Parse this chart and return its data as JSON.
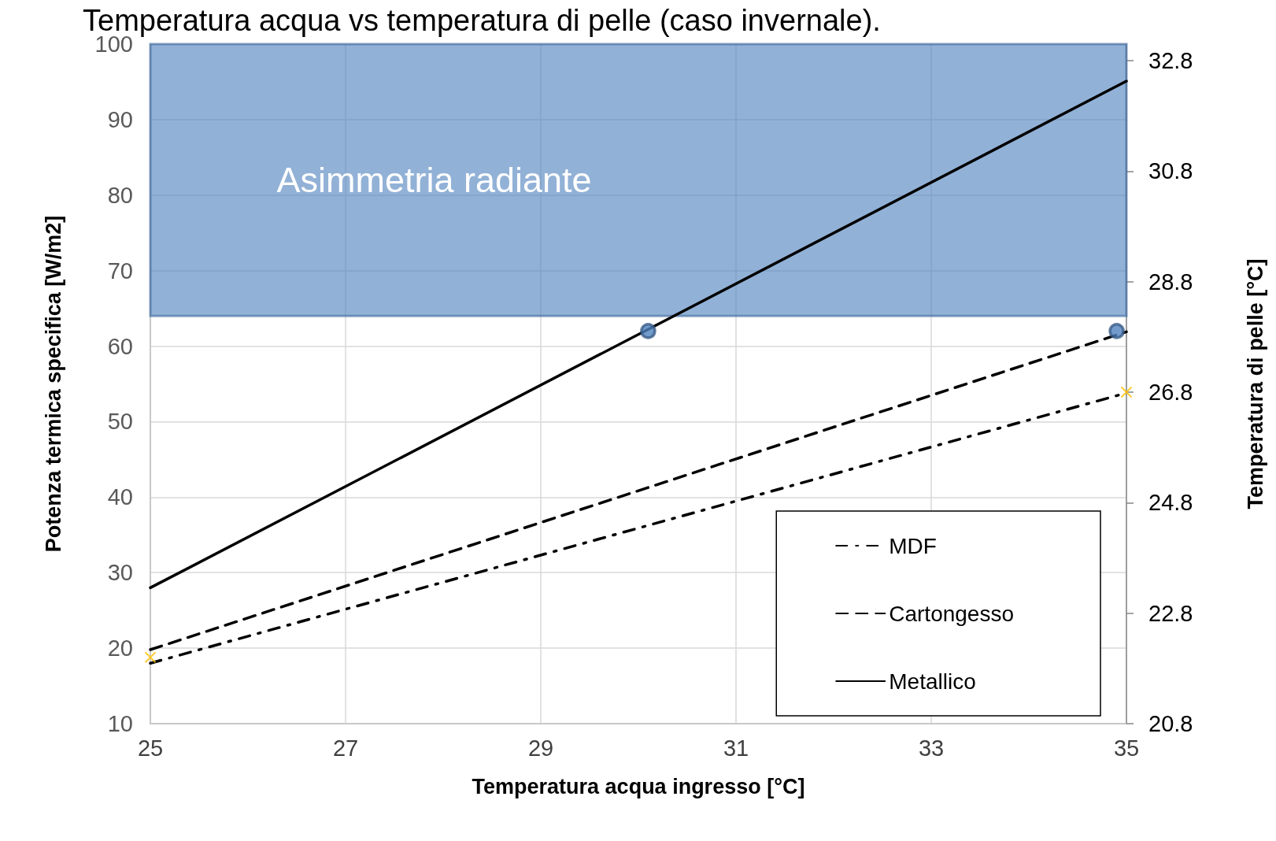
{
  "chart_data": {
    "type": "line",
    "title": "Temperatura acqua vs temperatura di pelle (caso invernale).",
    "xlabel": "Temperatura acqua ingresso [°C]",
    "ylabel": "Potenza termica specifica [W/m2]",
    "y2label": "Temperatura di pelle [°C]",
    "xlim": [
      25,
      35
    ],
    "xticks": [
      25,
      27,
      29,
      31,
      33,
      35
    ],
    "ylim": [
      10,
      100
    ],
    "yticks": [
      10,
      20,
      30,
      40,
      50,
      60,
      70,
      80,
      90,
      100
    ],
    "y2lim": [
      20.8,
      33.1
    ],
    "y2ticks": [
      20.8,
      22.8,
      24.8,
      26.8,
      28.8,
      30.8,
      32.8
    ],
    "series": [
      {
        "name": "MDF",
        "color": "#000000",
        "x": [
          25,
          35
        ],
        "values": [
          18.0,
          53.8
        ],
        "line_style": "dashdot",
        "marker": "none"
      },
      {
        "name": "Cartongesso",
        "color": "#000000",
        "x": [
          25,
          35
        ],
        "values": [
          19.8,
          61.9
        ],
        "line_style": "dashed",
        "marker": "none"
      },
      {
        "name": "Metallico",
        "color": "#000000",
        "x": [
          25,
          35
        ],
        "values": [
          28.0,
          95.1
        ],
        "line_style": "solid",
        "marker": "none"
      },
      {
        "type": "scatter",
        "color": "#4f81bd",
        "x": [
          30.1,
          34.9
        ],
        "values": [
          62,
          62
        ],
        "marker": "circle"
      },
      {
        "type": "scatter",
        "color": "#ffc000",
        "x": [
          25,
          35
        ],
        "values": [
          22.0,
          26.8
        ],
        "marker": "cross",
        "axis": "y2"
      }
    ],
    "bands": [
      {
        "axis": "y",
        "from": 64,
        "to": 100,
        "label": "Asimmetria radiante",
        "color": "#4f81bd"
      }
    ],
    "grid": true,
    "legend": "bottom right"
  }
}
